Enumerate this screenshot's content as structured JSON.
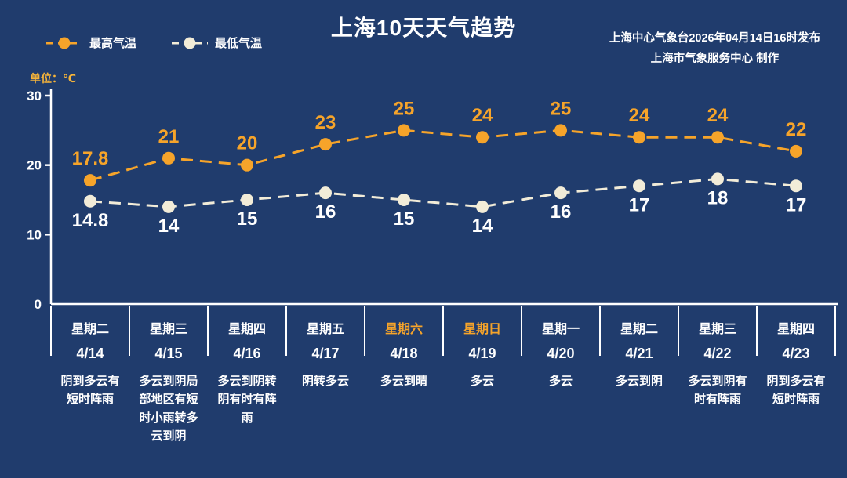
{
  "header": {
    "title": "上海10天天气趋势",
    "source_line1": "上海中心气象台2026年04月14日16时发布",
    "source_line2": "上海市气象服务中心  制作",
    "unit_label": "单位：℃"
  },
  "colors": {
    "background": "#203c6d",
    "axis": "#ffffff",
    "max_series": "#f6a42a",
    "min_series": "#f2ecd8",
    "max_value_text": "#f6a42a",
    "min_value_text": "#ffffff",
    "weekend_text": "#f6a42a"
  },
  "chart_data": {
    "type": "line",
    "title": "上海10天天气趋势",
    "unit": "℃",
    "ylim": [
      0,
      30
    ],
    "yticks": [
      0,
      10,
      20,
      30
    ],
    "grid": false,
    "legend_position": "top-left",
    "line_style": "dashed",
    "x_weekdays": [
      "星期二",
      "星期三",
      "星期四",
      "星期五",
      "星期六",
      "星期日",
      "星期一",
      "星期二",
      "星期三",
      "星期四"
    ],
    "x_dates": [
      "4/14",
      "4/15",
      "4/16",
      "4/17",
      "4/18",
      "4/19",
      "4/20",
      "4/21",
      "4/22",
      "4/23"
    ],
    "conditions": [
      "阴到多云有短时阵雨",
      "多云到阴局部地区有短时小雨转多云到阴",
      "多云到阴转阴有时有阵雨",
      "阴转多云",
      "多云到晴",
      "多云",
      "多云",
      "多云到阴",
      "多云到阴有时有阵雨",
      "阴到多云有短时阵雨"
    ],
    "weekend_indices": [
      4,
      5
    ],
    "series": [
      {
        "name": "最高气温",
        "color": "#f6a42a",
        "values": [
          17.8,
          21,
          20,
          23,
          25,
          24,
          25,
          24,
          24,
          22
        ]
      },
      {
        "name": "最低气温",
        "color": "#f2ecd8",
        "values": [
          14.8,
          14,
          15,
          16,
          15,
          14,
          16,
          17,
          18,
          17
        ]
      }
    ]
  }
}
